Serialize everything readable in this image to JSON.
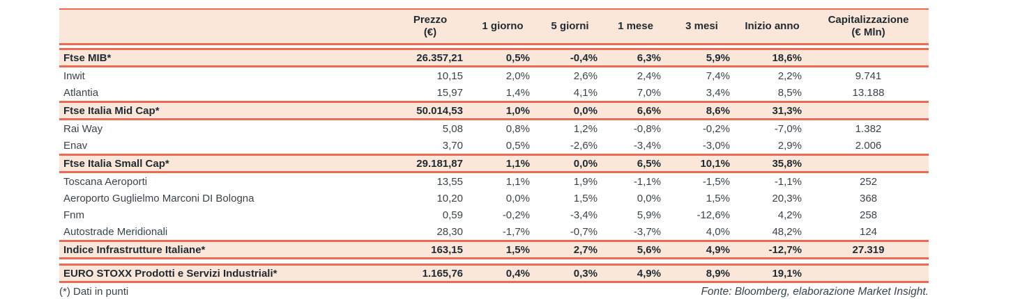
{
  "theme": {
    "line_color": "#ec6a52",
    "band_color": "#fbe7d9",
    "text_color": "#3a434b",
    "bold_text_color": "#1f2a30"
  },
  "chart_data": {
    "type": "table",
    "title": "",
    "columns": [
      "",
      "Prezzo\n(€)",
      "1 giorno",
      "5 giorni",
      "1 mese",
      "3 mesi",
      "Inizio anno",
      "Capitalizzazione\n(€ Mln)"
    ],
    "rows": [
      {
        "type": "section",
        "cells": [
          "Ftse MIB*",
          "26.357,21",
          "0,5%",
          "-0,4%",
          "6,3%",
          "5,9%",
          "18,6%",
          ""
        ]
      },
      {
        "type": "data",
        "cells": [
          "Inwit",
          "10,15",
          "2,0%",
          "2,6%",
          "2,4%",
          "7,4%",
          "2,2%",
          "9.741"
        ]
      },
      {
        "type": "data",
        "cells": [
          "Atlantia",
          "15,97",
          "1,4%",
          "4,1%",
          "7,0%",
          "3,4%",
          "8,5%",
          "13.188"
        ]
      },
      {
        "type": "section",
        "cells": [
          "Ftse Italia Mid Cap*",
          "50.014,53",
          "1,0%",
          "0,0%",
          "6,6%",
          "8,6%",
          "31,3%",
          ""
        ]
      },
      {
        "type": "data",
        "cells": [
          "Rai Way",
          "5,08",
          "0,8%",
          "1,2%",
          "-0,8%",
          "-0,2%",
          "-7,0%",
          "1.382"
        ]
      },
      {
        "type": "data",
        "cells": [
          "Enav",
          "3,70",
          "0,5%",
          "-2,6%",
          "-3,4%",
          "-3,0%",
          "2,9%",
          "2.006"
        ]
      },
      {
        "type": "section",
        "cells": [
          "Ftse Italia Small Cap*",
          "29.181,87",
          "1,1%",
          "0,0%",
          "6,5%",
          "10,1%",
          "35,8%",
          ""
        ]
      },
      {
        "type": "data",
        "cells": [
          "Toscana Aeroporti",
          "13,55",
          "1,1%",
          "1,9%",
          "-1,1%",
          "-1,5%",
          "-1,1%",
          "252"
        ]
      },
      {
        "type": "data",
        "cells": [
          "Aeroporto Guglielmo Marconi DI Bologna",
          "10,20",
          "0,0%",
          "1,5%",
          "0,0%",
          "1,5%",
          "20,3%",
          "368"
        ]
      },
      {
        "type": "data",
        "cells": [
          "Fnm",
          "0,59",
          "-0,2%",
          "-3,4%",
          "5,9%",
          "-12,6%",
          "4,2%",
          "258"
        ]
      },
      {
        "type": "data",
        "cells": [
          "Autostrade Meridionali",
          "28,30",
          "-1,7%",
          "-0,7%",
          "-3,7%",
          "4,0%",
          "48,2%",
          "124"
        ]
      },
      {
        "type": "section",
        "cells": [
          "Indice Infrastrutture Italiane*",
          "163,15",
          "1,5%",
          "2,7%",
          "5,6%",
          "4,9%",
          "-12,7%",
          "27.319"
        ]
      },
      {
        "type": "section",
        "gap_before": true,
        "cells": [
          "EURO STOXX Prodotti e Servizi Industriali*",
          "1.165,76",
          "0,4%",
          "0,3%",
          "4,9%",
          "8,9%",
          "19,1%",
          ""
        ]
      }
    ]
  },
  "footnotes": {
    "left": "(*) Dati in punti",
    "right": "Fonte: Bloomberg, elaborazione Market Insight."
  }
}
